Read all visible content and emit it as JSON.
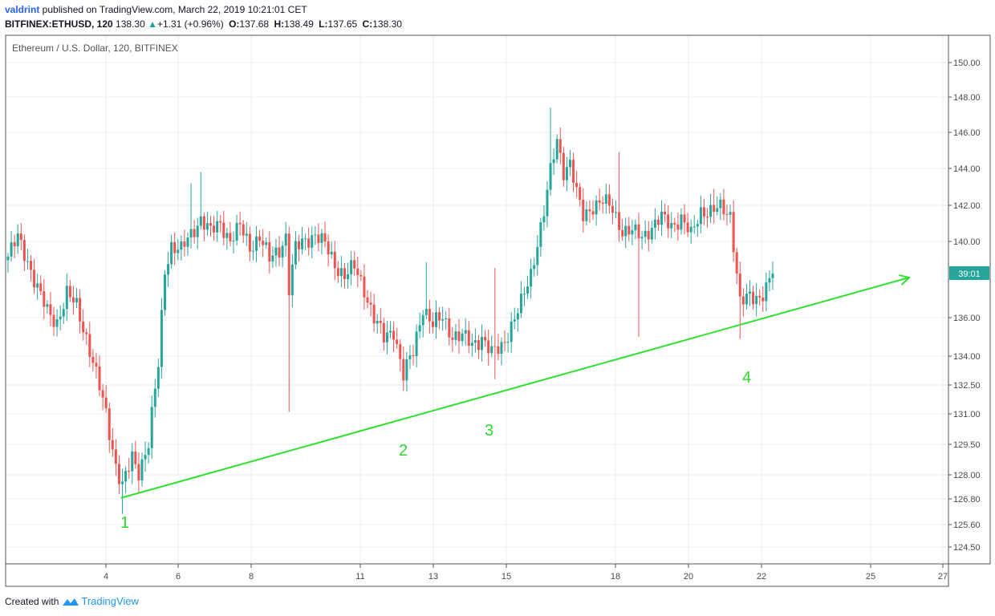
{
  "header": {
    "author": "valdrint",
    "published_text": " published on TradingView.com, March 22, 2019 10:21:01 CET",
    "symbol": "BITFINEX:ETHUSD, 120",
    "last": "138.30",
    "change": "+1.31 (+0.96%)",
    "o_label": "O:",
    "o_value": "137.68",
    "h_label": "H:",
    "h_value": "138.49",
    "l_label": "L:",
    "l_value": "137.65",
    "c_label": "C:",
    "c_value": "138.30"
  },
  "footer": {
    "created_text": "Created with",
    "brand": "TradingView"
  },
  "colors": {
    "up": "#26a69a",
    "down": "#ef5350",
    "trendline": "#2fe02f",
    "grid": "#e9eef3",
    "price_tag": "#26a69a"
  },
  "chart_data": {
    "type": "candlestick",
    "title": "Ethereum / U.S. Dollar, 120, BITFINEX",
    "y_ticks": [
      "150.00",
      "148.00",
      "146.00",
      "144.00",
      "142.00",
      "140.00",
      "136.00",
      "134.00",
      "132.50",
      "131.00",
      "129.50",
      "128.00",
      "126.80",
      "125.60",
      "124.50"
    ],
    "x_ticks": [
      "4",
      "6",
      "8",
      "11",
      "13",
      "15",
      "18",
      "20",
      "22",
      "25",
      "27"
    ],
    "price_label": "39:01",
    "last_price": 138.3,
    "annotations": [
      "1",
      "2",
      "3",
      "4"
    ],
    "trendline": {
      "from": {
        "x": "Mar 4",
        "price": 126.8
      },
      "to": {
        "x": "Mar 26",
        "price": 138.2
      }
    },
    "waypoints": [
      [
        0,
        139.2
      ],
      [
        3,
        140.2
      ],
      [
        6,
        139.0
      ],
      [
        9,
        137.5
      ],
      [
        12,
        136.3
      ],
      [
        15,
        135.8
      ],
      [
        18,
        137.2
      ],
      [
        21,
        136.6
      ],
      [
        24,
        135.0
      ],
      [
        27,
        133.0
      ],
      [
        30,
        131.0
      ],
      [
        33,
        128.5
      ],
      [
        35,
        127.4
      ],
      [
        38,
        128.8
      ],
      [
        40,
        128.2
      ],
      [
        43,
        129.6
      ],
      [
        46,
        133.5
      ],
      [
        48,
        138.5
      ],
      [
        50,
        139.8
      ],
      [
        53,
        139.5
      ],
      [
        56,
        140.4
      ],
      [
        59,
        141.3
      ],
      [
        62,
        140.5
      ],
      [
        65,
        141.0
      ],
      [
        68,
        140.1
      ],
      [
        71,
        140.8
      ],
      [
        74,
        139.7
      ],
      [
        77,
        140.3
      ],
      [
        80,
        139.0
      ],
      [
        83,
        139.6
      ],
      [
        85,
        140.3
      ],
      [
        86,
        137.5
      ],
      [
        88,
        139.6
      ],
      [
        91,
        140.1
      ],
      [
        94,
        140.4
      ],
      [
        97,
        139.8
      ],
      [
        100,
        138.8
      ],
      [
        103,
        138.2
      ],
      [
        106,
        138.6
      ],
      [
        109,
        137.5
      ],
      [
        112,
        136.0
      ],
      [
        115,
        134.9
      ],
      [
        118,
        135.4
      ],
      [
        121,
        133.0
      ],
      [
        124,
        134.2
      ],
      [
        127,
        136.6
      ],
      [
        130,
        135.6
      ],
      [
        133,
        136.0
      ],
      [
        136,
        135.1
      ],
      [
        139,
        135.0
      ],
      [
        142,
        134.6
      ],
      [
        145,
        135.0
      ],
      [
        148,
        134.1
      ],
      [
        151,
        134.5
      ],
      [
        154,
        135.6
      ],
      [
        157,
        136.7
      ],
      [
        160,
        138.3
      ],
      [
        162,
        140.0
      ],
      [
        164,
        141.6
      ],
      [
        166,
        143.8
      ],
      [
        168,
        145.6
      ],
      [
        170,
        143.9
      ],
      [
        172,
        144.3
      ],
      [
        174,
        142.6
      ],
      [
        176,
        141.4
      ],
      [
        179,
        142.0
      ],
      [
        182,
        142.2
      ],
      [
        185,
        141.8
      ],
      [
        188,
        140.6
      ],
      [
        191,
        140.5
      ],
      [
        194,
        140.3
      ],
      [
        197,
        140.8
      ],
      [
        200,
        141.3
      ],
      [
        203,
        140.9
      ],
      [
        206,
        141.3
      ],
      [
        209,
        140.3
      ],
      [
        212,
        141.7
      ],
      [
        215,
        141.7
      ],
      [
        218,
        141.8
      ],
      [
        221,
        141.5
      ],
      [
        224,
        136.8
      ],
      [
        227,
        137.0
      ],
      [
        230,
        137.1
      ],
      [
        233,
        137.9
      ],
      [
        234,
        138.3
      ]
    ]
  }
}
